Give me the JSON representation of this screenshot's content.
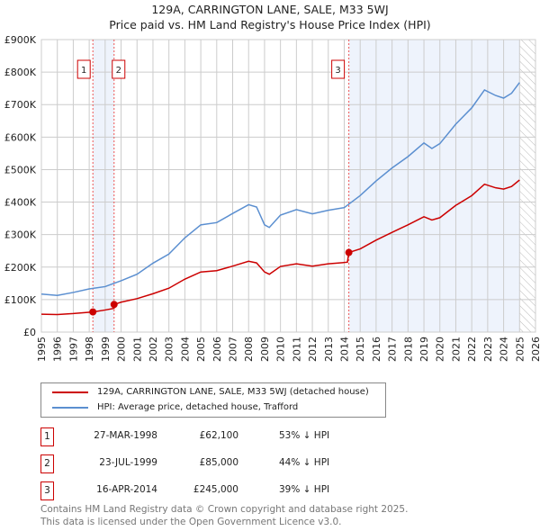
{
  "title": "129A, CARRINGTON LANE, SALE, M33 5WJ",
  "subtitle": "Price paid vs. HM Land Registry's House Price Index (HPI)",
  "chart_data": {
    "type": "line",
    "title": "129A, CARRINGTON LANE, SALE, M33 5WJ",
    "subtitle": "Price paid vs. HM Land Registry's House Price Index (HPI)",
    "xlim": [
      1995,
      2026
    ],
    "ylim": [
      0,
      900000
    ],
    "grid": true,
    "x_ticks": [
      "1995",
      "1996",
      "1997",
      "1998",
      "1999",
      "2000",
      "2001",
      "2002",
      "2003",
      "2004",
      "2005",
      "2006",
      "2007",
      "2008",
      "2009",
      "2010",
      "2011",
      "2012",
      "2013",
      "2014",
      "2015",
      "2016",
      "2017",
      "2018",
      "2019",
      "2020",
      "2021",
      "2022",
      "2023",
      "2024",
      "2025",
      "2026"
    ],
    "y_ticks": [
      {
        "v": 0,
        "label": "£0"
      },
      {
        "v": 100000,
        "label": "£100K"
      },
      {
        "v": 200000,
        "label": "£200K"
      },
      {
        "v": 300000,
        "label": "£300K"
      },
      {
        "v": 400000,
        "label": "£400K"
      },
      {
        "v": 500000,
        "label": "£500K"
      },
      {
        "v": 600000,
        "label": "£600K"
      },
      {
        "v": 700000,
        "label": "£700K"
      },
      {
        "v": 800000,
        "label": "£800K"
      },
      {
        "v": 900000,
        "label": "£900K"
      }
    ],
    "series": [
      {
        "name": "129A, CARRINGTON LANE, SALE, M33 5WJ (detached house)",
        "color": "#cc0000",
        "x": [
          1995,
          1996,
          1997,
          1998.23,
          1998.23,
          1999,
          1999.56,
          1999.56,
          2000,
          2001,
          2002,
          2003,
          2004,
          2005,
          2006,
          2007,
          2008,
          2008.5,
          2009,
          2009.3,
          2010,
          2011,
          2012,
          2013,
          2014.2,
          2014.29,
          2015,
          2016,
          2017,
          2018,
          2019,
          2019.5,
          2020,
          2021,
          2022,
          2022.8,
          2023.5,
          2024,
          2024.5,
          2025
        ],
        "y": [
          55000,
          54000,
          57000,
          62100,
          62100,
          68000,
          73000,
          85000,
          92000,
          103000,
          118000,
          135000,
          163000,
          185000,
          189000,
          203000,
          218000,
          213000,
          185000,
          178000,
          202000,
          210000,
          203000,
          210000,
          215000,
          245000,
          256000,
          283000,
          307000,
          330000,
          355000,
          345000,
          352000,
          390000,
          420000,
          455000,
          444000,
          440000,
          448000,
          468000
        ]
      },
      {
        "name": "HPI: Average price, detached house, Trafford",
        "color": "#5b8fd0",
        "x": [
          1995,
          1996,
          1997,
          1998,
          1999,
          2000,
          2001,
          2002,
          2003,
          2004,
          2005,
          2006,
          2007,
          2008,
          2008.5,
          2009,
          2009.3,
          2010,
          2011,
          2012,
          2013,
          2014,
          2015,
          2016,
          2017,
          2018,
          2019,
          2019.5,
          2020,
          2021,
          2022,
          2022.8,
          2023.5,
          2024,
          2024.5,
          2025
        ],
        "y": [
          117000,
          113000,
          122000,
          133000,
          140000,
          158000,
          178000,
          212000,
          240000,
          290000,
          330000,
          337000,
          365000,
          392000,
          385000,
          330000,
          322000,
          360000,
          377000,
          364000,
          375000,
          383000,
          420000,
          465000,
          505000,
          540000,
          582000,
          565000,
          580000,
          640000,
          690000,
          745000,
          728000,
          720000,
          735000,
          768000
        ]
      }
    ],
    "sales": [
      {
        "id": "1",
        "date": "27-MAR-1998",
        "x": 1998.23,
        "price": "£62,100",
        "value": 62100,
        "hpi": "53% ↓ HPI"
      },
      {
        "id": "2",
        "date": "23-JUL-1999",
        "x": 1999.56,
        "price": "£85,000",
        "value": 85000,
        "hpi": "44% ↓ HPI"
      },
      {
        "id": "3",
        "date": "16-APR-2014",
        "x": 2014.29,
        "price": "£245,000",
        "value": 245000,
        "hpi": "39% ↓ HPI"
      }
    ],
    "forecast_from": 2025,
    "legend": "below"
  },
  "footer": [
    "Contains HM Land Registry data © Crown copyright and database right 2025.",
    "This data is licensed under the Open Government Licence v3.0."
  ]
}
